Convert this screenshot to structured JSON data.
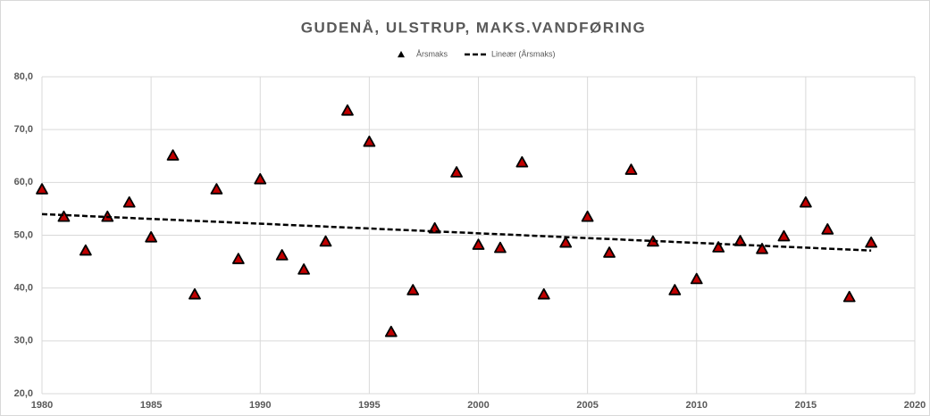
{
  "chart_data": {
    "type": "scatter",
    "title": "GUDENÅ, ULSTRUP, MAKS.VANDFØRING",
    "series": [
      {
        "name": "Årsmaks",
        "color": "#c00000",
        "marker": "triangle",
        "x": [
          1980,
          1981,
          1982,
          1983,
          1984,
          1985,
          1986,
          1987,
          1988,
          1989,
          1990,
          1991,
          1992,
          1993,
          1994,
          1995,
          1996,
          1997,
          1998,
          1999,
          2000,
          2001,
          2002,
          2003,
          2004,
          2005,
          2006,
          2007,
          2008,
          2009,
          2010,
          2011,
          2012,
          2013,
          2014,
          2015,
          2016,
          2017,
          2018
        ],
        "values": [
          58.7,
          53.5,
          47.1,
          53.5,
          56.2,
          49.6,
          65.1,
          38.8,
          58.7,
          45.5,
          60.6,
          46.2,
          43.5,
          48.8,
          73.6,
          67.7,
          31.7,
          39.6,
          51.3,
          61.9,
          48.2,
          47.6,
          63.8,
          38.8,
          48.6,
          53.5,
          46.7,
          62.4,
          48.8,
          39.6,
          41.7,
          47.7,
          48.9,
          47.4,
          49.8,
          56.2,
          51.1,
          38.3,
          48.6
        ]
      },
      {
        "name": "Lineær (Årsmaks)",
        "color": "#000000",
        "line_style": "dashed",
        "x": [
          1980,
          2018
        ],
        "values": [
          54.0,
          47.1
        ]
      }
    ],
    "xlim": [
      1980,
      2020
    ],
    "xticks": [
      1980,
      1985,
      1990,
      1995,
      2000,
      2005,
      2010,
      2015,
      2020
    ],
    "ylim": [
      20,
      80
    ],
    "yticks": [
      {
        "value": 20,
        "label": "20,0"
      },
      {
        "value": 30,
        "label": "30,0"
      },
      {
        "value": 40,
        "label": "40,0"
      },
      {
        "value": 50,
        "label": "50,0"
      },
      {
        "value": 60,
        "label": "60,0"
      },
      {
        "value": 70,
        "label": "70,0"
      },
      {
        "value": 80,
        "label": "80,0"
      }
    ],
    "grid": true,
    "legend": "top"
  }
}
